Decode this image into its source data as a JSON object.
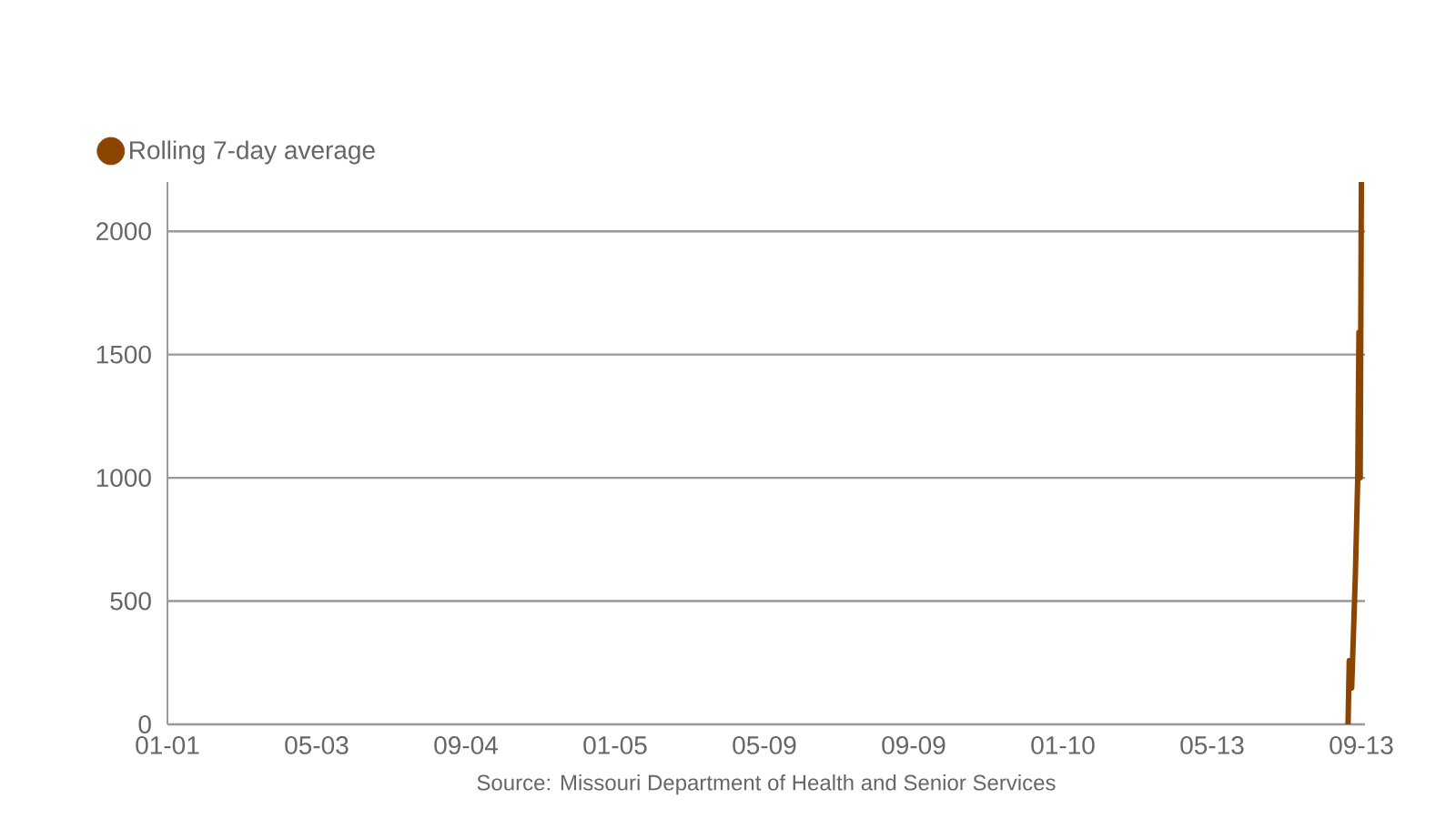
{
  "chart_data": {
    "type": "line",
    "categories": [
      "01-01",
      null,
      null,
      null,
      null,
      null,
      null,
      null,
      null,
      null,
      null,
      null,
      null,
      null,
      null,
      null,
      null,
      null,
      null,
      null,
      null,
      null,
      null,
      null,
      null,
      null,
      null,
      null,
      null,
      null,
      null,
      null,
      null,
      null,
      null,
      null,
      null,
      null,
      null,
      null,
      null,
      null,
      null,
      null,
      null,
      null,
      null,
      null,
      null,
      null,
      null,
      null,
      null,
      null,
      null,
      null,
      null,
      null,
      null,
      null,
      null,
      null,
      null,
      null,
      null,
      null,
      null,
      null,
      null,
      null,
      null,
      null,
      null,
      null,
      null,
      null,
      null,
      null,
      null,
      null,
      null,
      null,
      null,
      null,
      null,
      null,
      null,
      null,
      null,
      null,
      null,
      null,
      null,
      null,
      null,
      null,
      null,
      null,
      null,
      null,
      null,
      null,
      null,
      null,
      null,
      null,
      null,
      null,
      null,
      null,
      null,
      null,
      null,
      null,
      null,
      null,
      null,
      null,
      null,
      null,
      null,
      null,
      null,
      "05-03",
      null,
      null,
      null,
      null,
      null,
      null,
      null,
      null,
      null,
      null,
      null,
      null,
      null,
      null,
      null,
      null,
      null,
      null,
      null,
      null,
      null,
      null,
      null,
      null,
      null,
      null,
      null,
      null,
      null,
      null,
      null,
      null,
      null,
      null,
      null,
      null,
      null,
      null,
      null,
      null,
      null,
      null,
      null,
      null,
      null,
      null,
      null,
      null,
      null,
      null,
      null,
      null,
      null,
      null,
      null,
      null,
      null,
      null,
      null,
      null,
      null,
      null,
      null,
      null,
      null,
      null,
      null,
      null,
      null,
      null,
      null,
      null,
      null,
      null,
      null,
      null,
      null,
      null,
      null,
      null,
      null,
      null,
      null,
      null,
      null,
      null,
      null,
      null,
      null,
      null,
      null,
      null,
      null,
      null,
      null,
      null,
      null,
      null,
      null,
      null,
      null,
      null,
      null,
      null,
      null,
      null,
      null,
      null,
      null,
      null,
      null,
      null,
      null,
      null,
      null,
      null,
      null,
      null,
      null,
      null,
      null,
      null,
      "09-04",
      null,
      null,
      null,
      null,
      null,
      null,
      null,
      null,
      null,
      null,
      null,
      null,
      null,
      null,
      null,
      null,
      null,
      null,
      null,
      null,
      null,
      null,
      null,
      null,
      null,
      null,
      null,
      null,
      null,
      null,
      null,
      null,
      null,
      null,
      null,
      null,
      null,
      null,
      null,
      null,
      null,
      null,
      null,
      null,
      null,
      null,
      null,
      null,
      null,
      null,
      null,
      null,
      null,
      null,
      null,
      null,
      null,
      null,
      null,
      null,
      null,
      null,
      null,
      null,
      null,
      null,
      null,
      null,
      null,
      null,
      null,
      null,
      null,
      null,
      null,
      null,
      null,
      null,
      null,
      null,
      null,
      null,
      null,
      null,
      null,
      null,
      null,
      null,
      null,
      null,
      null,
      null,
      null,
      null,
      null,
      null,
      null,
      null,
      null,
      null,
      null,
      null,
      null,
      null,
      null,
      null,
      null,
      null,
      null,
      null,
      null,
      null,
      null,
      null,
      null,
      null,
      null,
      null,
      null,
      null,
      null,
      null,
      "01-05",
      null,
      null,
      null,
      null,
      null,
      null,
      null,
      null,
      null,
      null,
      null,
      null,
      null,
      null,
      null,
      null,
      null,
      null,
      null,
      null,
      null,
      null,
      null,
      null,
      null,
      null,
      null,
      null,
      null,
      null,
      null,
      null,
      null,
      null,
      null,
      null,
      null,
      null,
      null,
      null,
      null,
      null,
      null,
      null,
      null,
      null,
      null,
      null,
      null,
      null,
      null,
      null,
      null,
      null,
      null,
      null,
      null,
      null,
      null,
      null,
      null,
      null,
      null,
      null,
      null,
      null,
      null,
      null,
      null,
      null,
      null,
      null,
      null,
      null,
      null,
      null,
      null,
      null,
      null,
      null,
      null,
      null,
      null,
      null,
      null,
      null,
      null,
      null,
      null,
      null,
      null,
      null,
      null,
      null,
      null,
      null,
      null,
      null,
      null,
      null,
      null,
      null,
      null,
      null,
      null,
      null,
      null,
      null,
      null,
      null,
      null,
      null,
      null,
      null,
      null,
      null,
      null,
      null,
      null,
      null,
      null,
      null,
      "05-09",
      null,
      null,
      null,
      null,
      null,
      null,
      null,
      null,
      null,
      null,
      null,
      null,
      null,
      null,
      null,
      null,
      null,
      null,
      null,
      null,
      null,
      null,
      null,
      null,
      null,
      null,
      null,
      null,
      null,
      null,
      null,
      null,
      null,
      null,
      null,
      null,
      null,
      null,
      null,
      null,
      null,
      null,
      null,
      null,
      null,
      null,
      null,
      null,
      null,
      null,
      null,
      null,
      null,
      null,
      null,
      null,
      null,
      null,
      null,
      null,
      null,
      null,
      null,
      null,
      null,
      null,
      null,
      null,
      null,
      null,
      null,
      null,
      null,
      null,
      null,
      null,
      null,
      null,
      null,
      null,
      null,
      null,
      null,
      null,
      null,
      null,
      null,
      null,
      null,
      null,
      null,
      null,
      null,
      null,
      null,
      null,
      null,
      null,
      null,
      null,
      null,
      null,
      null,
      null,
      null,
      null,
      null,
      null,
      null,
      null,
      null,
      null,
      null,
      null,
      null,
      null,
      null,
      null,
      null,
      null,
      null,
      null,
      "09-09",
      null,
      null,
      null,
      null,
      null,
      null,
      null,
      null,
      null,
      null,
      null,
      null,
      null,
      null,
      null,
      null,
      null,
      null,
      null,
      null,
      null,
      null,
      null,
      null,
      null,
      null,
      null,
      null,
      null,
      null,
      null,
      null,
      null,
      null,
      null,
      null,
      null,
      null,
      null,
      null,
      null,
      null,
      null,
      null,
      null,
      null,
      null,
      null,
      null,
      null,
      null,
      null,
      null,
      null,
      null,
      null,
      null,
      null,
      null,
      null,
      null,
      null,
      null,
      null,
      null,
      null,
      null,
      null,
      null,
      null,
      null,
      null,
      null,
      null,
      null,
      null,
      null,
      null,
      null,
      null,
      null,
      null,
      null,
      null,
      null,
      null,
      null,
      null,
      null,
      null,
      null,
      null,
      null,
      null,
      null,
      null,
      null,
      null,
      null,
      null,
      null,
      null,
      null,
      null,
      null,
      null,
      null,
      null,
      null,
      null,
      null,
      null,
      null,
      null,
      null,
      null,
      null,
      null,
      null,
      null,
      null,
      null,
      "01-10",
      null,
      null,
      null,
      null,
      null,
      null,
      null,
      null,
      null,
      null,
      null,
      null,
      null,
      null,
      null,
      null,
      null,
      null,
      null,
      null,
      null,
      null,
      null,
      null,
      null,
      null,
      null,
      null,
      null,
      null,
      null,
      null,
      null,
      null,
      null,
      null,
      null,
      null,
      null,
      null,
      null,
      null,
      null,
      null,
      null,
      null,
      null,
      null,
      null,
      null,
      null,
      null,
      null,
      null,
      null,
      null,
      null,
      null,
      null,
      null,
      null,
      null,
      null,
      null,
      null,
      null,
      null,
      null,
      null,
      null,
      null,
      null,
      null,
      null,
      null,
      null,
      null,
      null,
      null,
      null,
      null,
      null,
      null,
      null,
      null,
      null,
      null,
      null,
      null,
      null,
      null,
      null,
      null,
      null,
      null,
      null,
      null,
      null,
      null,
      null,
      null,
      null,
      null,
      null,
      null,
      null,
      null,
      null,
      null,
      null,
      null,
      null,
      null,
      null,
      null,
      null,
      null,
      null,
      null,
      null,
      null,
      null,
      "05-13",
      null,
      null,
      null,
      null,
      null,
      null,
      null,
      null,
      null,
      null,
      null,
      null,
      null,
      null,
      null,
      null,
      null,
      null,
      null,
      null,
      null,
      null,
      null,
      null,
      null,
      null,
      null,
      null,
      null,
      null,
      null,
      null,
      null,
      null,
      null,
      null,
      null,
      null,
      null,
      null,
      null,
      null,
      null,
      null,
      null,
      null,
      null,
      null,
      null,
      null,
      null,
      null,
      null,
      null,
      null,
      null,
      null,
      null,
      null,
      null,
      null,
      null,
      null,
      null,
      null,
      null,
      null,
      null,
      null,
      null,
      null,
      null,
      null,
      null,
      null,
      null,
      null,
      null,
      null,
      null,
      null,
      null,
      null,
      null,
      null,
      null,
      null,
      null,
      null,
      null,
      null,
      null,
      null,
      null,
      null,
      null,
      null,
      null,
      null,
      null,
      null,
      null,
      null,
      null,
      null,
      null,
      null,
      null,
      null,
      null,
      null,
      null,
      null,
      null,
      null,
      null,
      null,
      null,
      null,
      null,
      null,
      null,
      "09-13",
      null,
      null,
      null
    ],
    "series": [
      {
        "name": "Rolling 7-day average",
        "color": "#8b4500",
        "values": [
          null,
          null,
          null,
          null,
          null,
          null,
          null,
          null,
          null,
          null,
          null,
          null,
          null,
          null,
          null,
          null,
          null,
          null,
          null,
          null,
          null,
          null,
          null,
          null,
          null,
          null,
          null,
          null,
          null,
          null,
          null,
          null,
          null,
          null,
          null,
          null,
          null,
          null,
          null,
          null,
          null,
          null,
          null,
          null,
          null,
          null,
          null,
          null,
          null,
          null,
          null,
          null,
          null,
          null,
          null,
          null,
          null,
          null,
          null,
          null,
          null,
          null,
          null,
          null,
          null,
          null,
          null,
          null,
          null,
          null,
          null,
          null,
          null,
          null,
          null,
          null,
          null,
          null,
          null,
          null,
          null,
          null,
          null,
          null,
          null,
          null,
          null,
          null,
          null,
          null,
          null,
          null,
          null,
          null,
          null,
          null,
          null,
          null,
          null,
          null,
          null,
          null,
          null,
          null,
          null,
          null,
          null,
          null,
          null,
          null,
          null,
          null,
          null,
          null,
          null,
          null,
          null,
          null,
          null,
          null,
          null,
          null,
          null,
          null,
          null,
          null,
          null,
          null,
          null,
          null,
          null,
          null,
          null,
          null,
          null,
          null,
          null,
          null,
          null,
          null,
          null,
          null,
          null,
          null,
          null,
          null,
          null,
          null,
          null,
          null,
          null,
          null,
          null,
          null,
          null,
          null,
          null,
          null,
          null,
          null,
          null,
          null,
          null,
          null,
          null,
          null,
          null,
          null,
          null,
          null,
          null,
          null,
          null,
          null,
          null,
          null,
          null,
          null,
          null,
          null,
          null,
          null,
          null,
          null,
          null,
          null,
          null,
          null,
          null,
          null,
          null,
          null,
          null,
          null,
          null,
          null,
          null,
          null,
          null,
          null,
          null,
          null,
          null,
          null,
          null,
          null,
          null,
          null,
          null,
          null,
          null,
          null,
          null,
          null,
          null,
          null,
          null,
          null,
          null,
          null,
          null,
          null,
          null,
          null,
          null,
          null,
          null,
          null,
          null,
          null,
          null,
          null,
          null,
          null,
          null,
          null,
          null,
          null,
          null,
          null,
          null,
          null,
          null,
          null,
          null,
          null,
          null,
          null,
          null,
          null,
          null,
          null,
          null,
          null,
          null,
          null,
          null,
          null,
          null,
          null,
          null,
          null,
          null,
          null,
          null,
          null,
          null,
          null,
          null,
          null,
          null,
          null,
          null,
          null,
          null,
          null,
          null,
          null,
          null,
          null,
          null,
          null,
          null,
          null,
          null,
          null,
          null,
          null,
          null,
          null,
          null,
          null,
          null,
          null,
          null,
          null,
          null,
          null,
          null,
          null,
          null,
          null,
          null,
          null,
          null,
          null,
          null,
          null,
          null,
          null,
          null,
          null,
          null,
          null,
          null,
          null,
          null,
          null,
          null,
          null,
          null,
          null,
          null,
          null,
          null,
          null,
          null,
          null,
          null,
          null,
          null,
          null,
          null,
          null,
          null,
          null,
          null,
          null,
          null,
          null,
          null,
          null,
          null,
          null,
          null,
          null,
          null,
          null,
          null,
          null,
          null,
          null,
          null,
          null,
          null,
          null,
          null,
          null,
          null,
          null,
          null,
          null,
          null,
          null,
          null,
          null,
          null,
          null,
          null,
          null,
          null,
          null,
          null,
          null,
          null,
          null,
          null,
          null,
          null,
          null,
          null,
          null,
          null,
          null,
          null,
          null,
          null,
          null,
          null,
          null,
          null,
          null,
          null,
          null,
          null,
          null,
          null,
          null,
          null,
          null,
          null,
          null,
          null,
          null,
          null,
          null,
          null,
          null,
          null,
          null,
          null,
          null,
          null,
          null,
          null,
          null,
          null,
          null,
          null,
          null,
          null,
          null,
          null,
          null,
          null,
          null,
          null,
          null,
          null,
          null,
          null,
          null,
          null,
          null,
          null,
          null,
          null,
          null,
          null,
          null,
          null,
          null,
          null,
          null,
          null,
          null,
          null,
          null,
          null,
          null,
          null,
          null,
          null,
          null,
          null,
          null,
          null,
          null,
          null,
          null,
          null,
          null,
          null,
          null,
          null,
          null,
          null,
          null,
          null,
          null,
          null,
          null,
          null,
          null,
          null,
          null,
          null,
          null,
          null,
          null,
          null,
          null,
          null,
          null,
          null,
          null,
          null,
          null,
          null,
          null,
          null,
          null,
          null,
          null,
          null,
          null,
          null,
          null,
          null,
          null,
          null,
          null,
          null,
          null,
          null,
          null,
          null,
          null,
          null,
          null,
          null,
          null,
          null,
          null,
          null,
          null,
          null,
          null,
          null,
          null,
          null,
          null,
          null,
          null,
          null,
          null,
          null,
          null,
          null,
          null,
          null,
          null,
          null,
          null,
          null,
          null,
          null,
          null,
          null,
          null,
          null,
          null,
          null,
          null,
          null,
          null,
          null,
          null,
          null,
          null,
          null,
          null,
          null,
          null,
          null,
          null,
          null,
          null,
          null,
          null,
          null,
          null,
          null,
          null,
          null,
          null,
          null,
          null,
          null,
          null,
          null,
          null,
          null,
          null,
          null,
          null,
          null,
          null,
          null,
          null,
          null,
          null,
          null,
          null,
          null,
          null,
          null,
          null,
          null,
          null,
          null,
          null,
          null,
          null,
          null,
          null,
          null,
          null,
          null,
          null,
          null,
          null,
          null,
          null,
          null,
          null,
          null,
          null,
          null,
          null,
          null,
          null,
          null,
          null,
          null,
          null,
          null,
          null,
          null,
          null,
          null,
          null,
          null,
          null,
          null,
          null,
          null,
          null,
          null,
          null,
          null,
          null,
          null,
          null,
          null,
          null,
          null,
          null,
          null,
          null,
          null,
          null,
          null,
          null,
          null,
          null,
          null,
          null,
          null,
          null,
          null,
          null,
          null,
          null,
          null,
          null,
          null,
          null,
          null,
          null,
          null,
          null,
          null,
          null,
          null,
          null,
          null,
          null,
          null,
          null,
          null,
          null,
          null,
          null,
          null,
          null,
          null,
          null,
          null,
          null,
          null,
          null,
          null,
          null,
          null,
          null,
          null,
          null,
          null,
          null,
          null,
          null,
          null,
          null,
          null,
          null,
          null,
          null,
          null,
          null,
          null,
          null,
          null,
          null,
          null,
          null,
          null,
          null,
          null,
          null,
          null,
          null,
          null,
          null,
          null,
          null,
          null,
          null,
          null,
          null,
          null,
          null,
          null,
          null,
          null,
          null,
          null,
          null,
          null,
          null,
          null,
          null,
          null,
          null,
          null,
          null,
          null,
          null,
          null,
          null,
          null,
          null,
          null,
          null,
          null,
          null,
          null,
          null,
          null,
          null,
          null,
          null,
          null,
          null,
          null,
          null,
          null,
          null,
          null,
          null,
          null,
          null,
          null,
          null,
          null,
          null,
          null,
          null,
          null,
          null,
          null,
          null,
          null,
          null,
          null,
          null,
          null,
          null,
          null,
          null,
          null,
          null,
          null,
          null,
          null,
          null,
          null,
          null,
          null,
          null,
          null,
          null,
          null,
          null,
          null,
          null,
          null,
          null,
          null,
          null,
          null,
          null,
          null,
          null,
          null,
          null,
          null,
          null,
          null,
          null,
          null,
          null,
          null,
          null,
          null,
          null,
          null,
          null,
          null,
          null,
          null,
          null,
          null,
          null,
          null,
          null,
          null,
          null,
          null,
          null,
          null,
          null,
          null,
          null,
          null,
          null,
          null,
          null,
          null,
          null,
          null,
          null,
          null,
          null,
          null,
          null,
          null,
          null,
          null,
          null,
          null,
          null,
          null,
          null,
          null,
          null,
          null,
          null,
          null,
          null,
          null,
          null,
          null,
          null,
          null,
          null,
          null,
          null,
          null,
          null,
          null,
          null,
          null,
          null,
          null,
          null,
          null,
          null,
          null,
          null,
          null,
          null,
          null,
          null,
          null,
          null,
          null,
          null,
          null,
          null,
          null,
          null,
          null,
          null,
          null,
          null,
          null,
          null,
          null,
          null,
          null,
          null,
          null,
          null,
          null,
          null,
          null,
          null,
          null,
          null,
          null,
          null,
          null,
          null,
          null,
          null,
          null,
          null,
          null,
          null,
          null,
          null,
          null,
          null,
          null,
          null,
          null,
          null,
          null,
          null,
          null,
          null,
          null,
          null,
          null,
          null,
          null,
          null,
          null,
          null,
          null,
          null,
          null,
          null,
          null,
          null,
          null,
          null,
          null,
          null,
          null,
          null,
          null,
          null,
          null,
          null,
          null,
          null,
          null,
          null,
          null,
          null,
          null,
          null,
          null,
          null,
          null,
          null,
          null,
          null,
          null,
          null,
          null,
          0,
          258,
          258,
          148,
          300,
          450,
          600,
          800,
          1000,
          1590,
          1000,
          2200,
          null,
          null,
          null
        ]
      }
    ],
    "ylim": [
      0,
      2200
    ],
    "yticks": [
      0,
      500,
      1000,
      1500,
      2000
    ],
    "grid": "y",
    "legend": "top left",
    "marker": "none",
    "line_style": "solid",
    "annotations": [
      "Source: Missouri Department of Health and Senior Services"
    ]
  }
}
